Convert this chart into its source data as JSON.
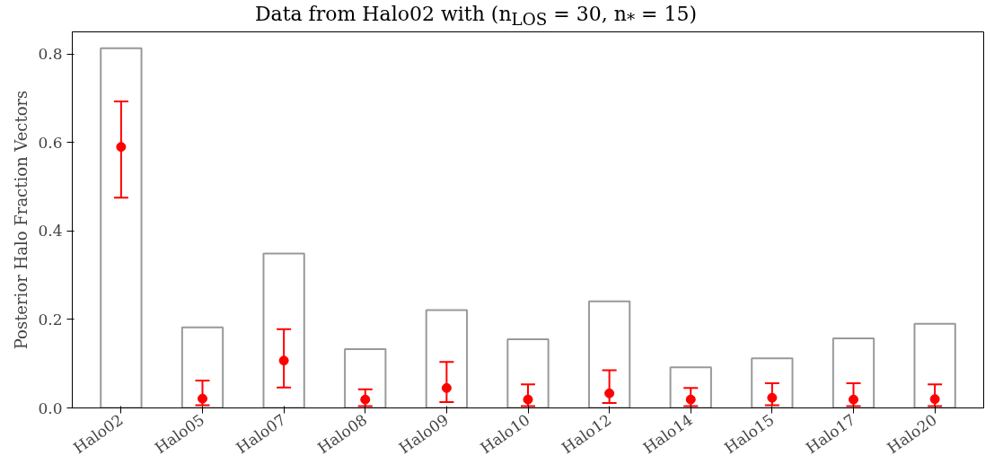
{
  "chart_data": {
    "type": "bar",
    "title": "Data from Halo02 with (n$_{LOS}$ = 30, n$_{*}$ = 15)",
    "ylabel": "Posterior Halo Fraction Vectors",
    "categories": [
      "Halo02",
      "Halo05",
      "Halo07",
      "Halo08",
      "Halo09",
      "Halo10",
      "Halo12",
      "Halo14",
      "Halo15",
      "Halo17",
      "Halo20"
    ],
    "series": [
      {
        "color": "#808080",
        "values": [
          0.813,
          0.182,
          0.349,
          0.133,
          0.221,
          0.155,
          0.241,
          0.092,
          0.112,
          0.157,
          0.19
        ]
      },
      {
        "type": "scatter",
        "color": "#ff0000",
        "x": [
          "Halo02",
          "Halo05",
          "Halo07",
          "Halo08",
          "Halo09",
          "Halo10",
          "Halo12",
          "Halo14",
          "Halo15",
          "Halo17",
          "Halo20"
        ],
        "values": [
          0.59,
          0.021,
          0.107,
          0.019,
          0.045,
          0.019,
          0.033,
          0.019,
          0.023,
          0.019,
          0.02
        ],
        "errors": [
          [
            0.475,
            0.693
          ],
          [
            0.006,
            0.062
          ],
          [
            0.046,
            0.178
          ],
          [
            0.004,
            0.042
          ],
          [
            0.013,
            0.104
          ],
          [
            0.004,
            0.053
          ],
          [
            0.011,
            0.085
          ],
          [
            0.004,
            0.045
          ],
          [
            0.006,
            0.056
          ],
          [
            0.004,
            0.056
          ],
          [
            0.004,
            0.053
          ]
        ]
      }
    ],
    "ylim": [
      0,
      0.85
    ],
    "yticks": [
      {
        "value": 0,
        "label": "0.0"
      },
      {
        "value": 0.2,
        "label": "0.2"
      },
      {
        "value": 0.4,
        "label": "0.4"
      },
      {
        "value": 0.6,
        "label": "0.6"
      },
      {
        "value": 0.8,
        "label": "0.8"
      }
    ],
    "marker": "circle",
    "grid": false
  }
}
